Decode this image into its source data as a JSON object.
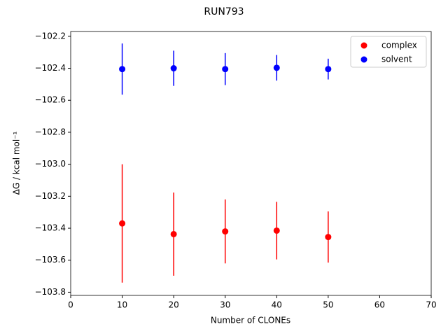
{
  "chart_data": {
    "type": "errorbar-scatter",
    "title": "RUN793",
    "x_label": "Number of CLONEs",
    "y_label": "ΔG / kcal mol⁻¹",
    "x": [
      10,
      20,
      30,
      40,
      50
    ],
    "series": [
      {
        "name": "complex",
        "color": "#ff0000",
        "values": [
          -103.37,
          -103.437,
          -103.42,
          -103.415,
          -103.455
        ],
        "errors": [
          0.37,
          0.26,
          0.2,
          0.18,
          0.16
        ]
      },
      {
        "name": "solvent",
        "color": "#0000ff",
        "values": [
          -102.405,
          -102.4,
          -102.405,
          -102.397,
          -102.405
        ],
        "errors": [
          0.16,
          0.11,
          0.1,
          0.08,
          0.065
        ]
      }
    ],
    "xlim": [
      0,
      70
    ],
    "xticks": [
      0,
      10,
      20,
      30,
      40,
      50,
      60,
      70
    ],
    "ylim": [
      -103.82,
      -102.17
    ],
    "yticks": [
      {
        "value": -103.8,
        "label": "−103.8"
      },
      {
        "value": -103.6,
        "label": "−103.6"
      },
      {
        "value": -103.4,
        "label": "−103.4"
      },
      {
        "value": -103.2,
        "label": "−103.2"
      },
      {
        "value": -103.0,
        "label": "−103.0"
      },
      {
        "value": -102.8,
        "label": "−102.8"
      },
      {
        "value": -102.6,
        "label": "−102.6"
      },
      {
        "value": -102.4,
        "label": "−102.4"
      },
      {
        "value": -102.2,
        "label": "−102.2"
      }
    ],
    "legend": "upper right",
    "grid": false
  }
}
